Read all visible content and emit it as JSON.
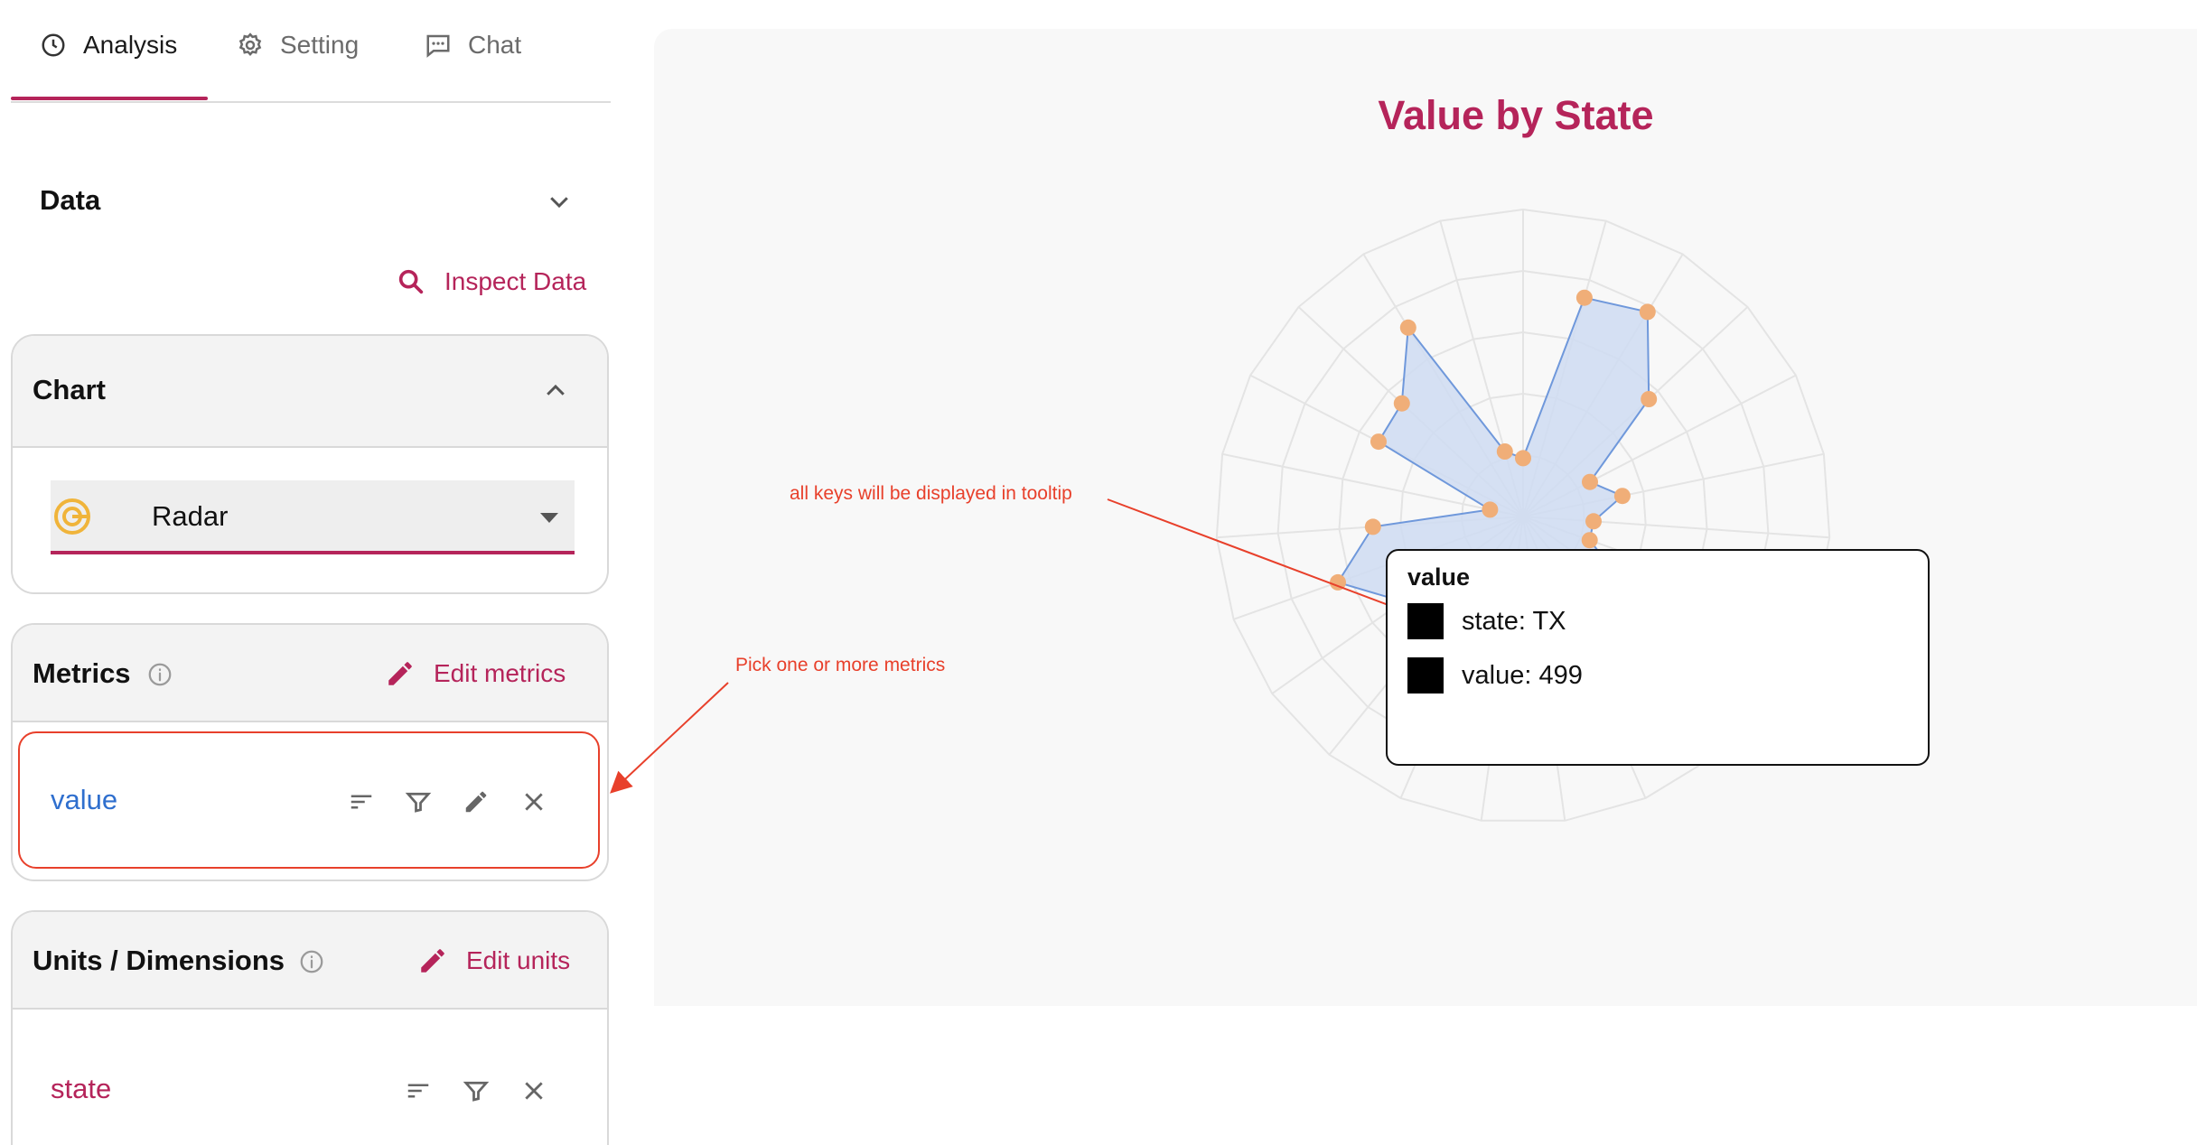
{
  "tabs": [
    {
      "label": "Analysis",
      "icon": "clock-icon",
      "active": true
    },
    {
      "label": "Setting",
      "icon": "gear-icon",
      "active": false
    },
    {
      "label": "Chat",
      "icon": "chat-icon",
      "active": false
    }
  ],
  "data_section": {
    "title": "Data",
    "inspect_label": "Inspect Data"
  },
  "chart_panel": {
    "title": "Chart",
    "chart_type": "Radar",
    "chart_type_icon": "radar-icon"
  },
  "metrics_panel": {
    "title": "Metrics",
    "edit_label": "Edit metrics",
    "items": [
      {
        "label": "value"
      }
    ]
  },
  "units_panel": {
    "title": "Units / Dimensions",
    "edit_label": "Edit units",
    "items": [
      {
        "label": "state"
      }
    ]
  },
  "annotations": {
    "tooltip_note": "all keys will be displayed in tooltip",
    "metrics_note": "Pick one or more metrics"
  },
  "tooltip": {
    "title": "value",
    "rows": [
      "state: TX",
      "value: 499"
    ]
  },
  "colors": {
    "accent": "#b5245a",
    "metric_text": "#2f6fce",
    "annotation": "#e8402b",
    "radar_fill": "#cfdcf2",
    "radar_stroke": "#6f98db",
    "radar_point": "#f0ae78"
  },
  "chart_data": {
    "type": "radar",
    "title": "Value by State",
    "series": [
      {
        "name": "value",
        "values": [
          190,
          740,
          780,
          560,
          245,
          330,
          230,
          230,
          430,
          790,
          290,
          680,
          560,
          480,
          410,
          480,
          640,
          490,
          110,
          530,
          540,
          720,
          220
        ]
      }
    ],
    "rmax": 1000,
    "grid_levels": 5
  }
}
